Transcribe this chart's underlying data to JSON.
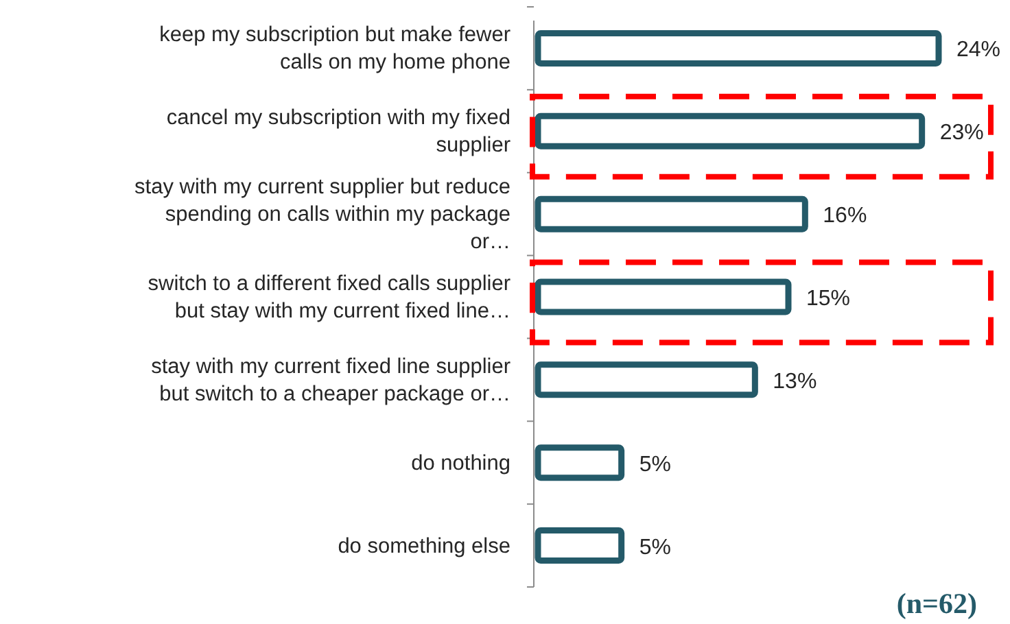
{
  "chart_data": {
    "type": "bar",
    "orientation": "horizontal",
    "categories": [
      "keep my subscription but make fewer calls on my home phone",
      "cancel my subscription with my fixed supplier",
      "stay with my current supplier but reduce spending on calls within my package or…",
      "switch to a different fixed calls supplier but stay with my current fixed line…",
      "stay with my current fixed line supplier but switch to a cheaper package or…",
      "do nothing",
      "do something else"
    ],
    "values": [
      24,
      23,
      16,
      15,
      13,
      5,
      5
    ],
    "color": "#245a69",
    "value_labels": [
      "24%",
      "23%",
      "16%",
      "15%",
      "13%",
      "5%",
      "5%"
    ],
    "annotations": [
      "(n=62)"
    ]
  }
}
